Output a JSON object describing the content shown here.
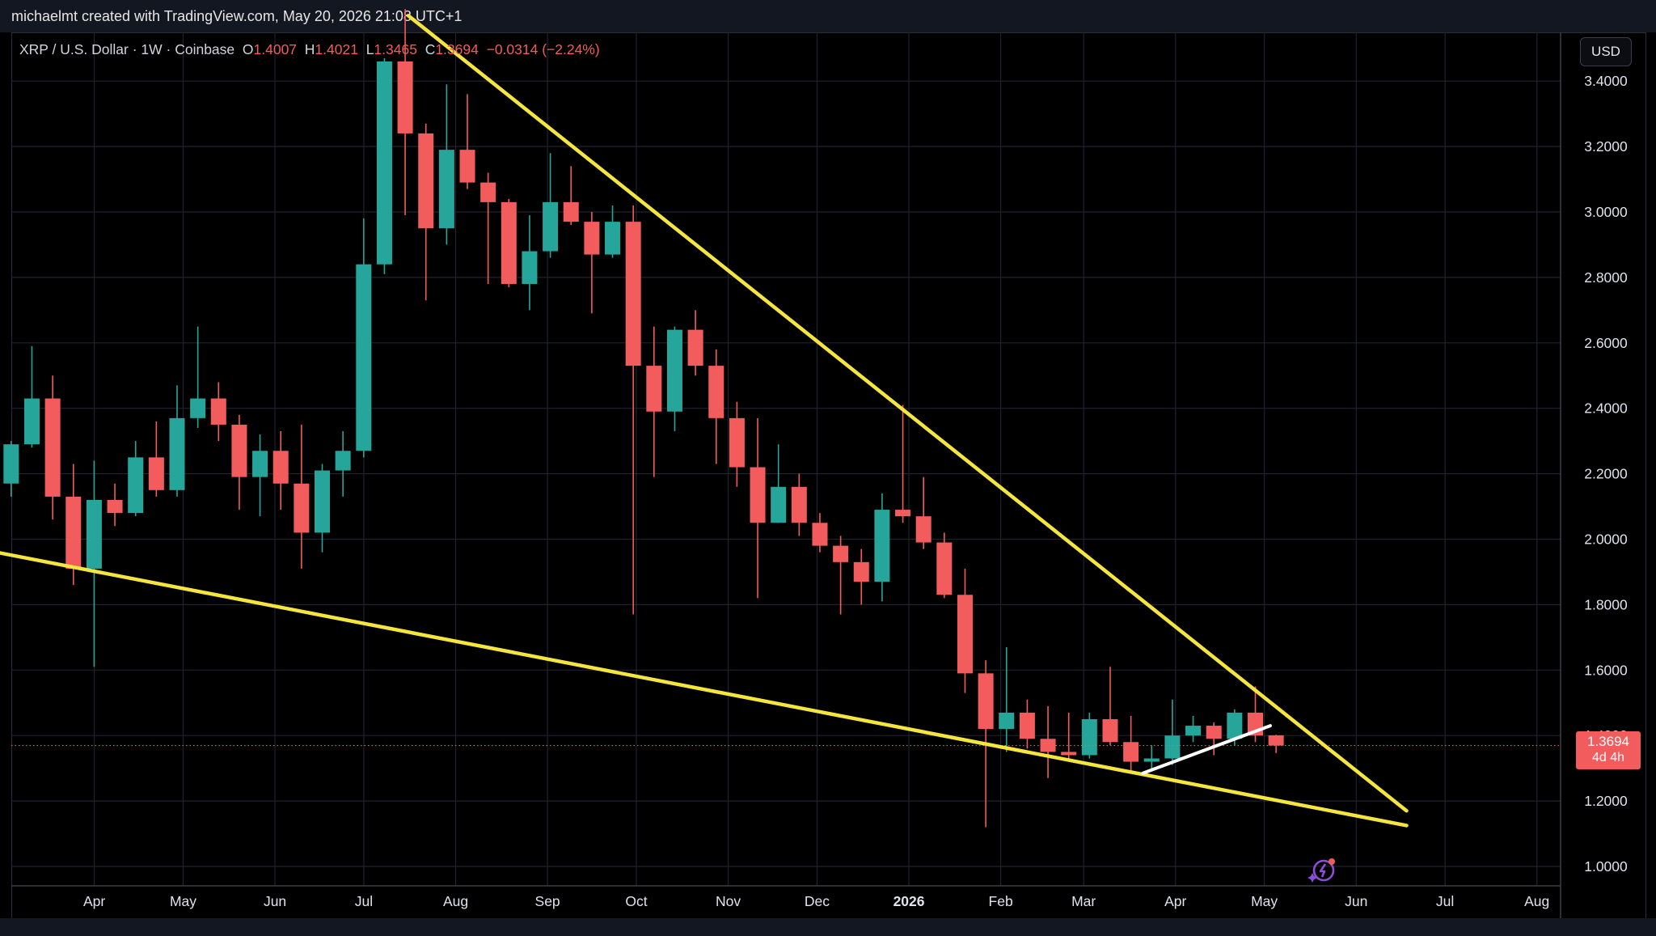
{
  "header": {
    "credit": "michaelmt created with TradingView.com, May 20, 2026 21:08 UTC+1"
  },
  "legend": {
    "symbol": "XRP / U.S. Dollar · 1W · Coinbase",
    "o_label": "O",
    "o_value": "1.4007",
    "h_label": "H",
    "h_value": "1.4021",
    "l_label": "L",
    "l_value": "1.3465",
    "c_label": "C",
    "c_value": "1.3694",
    "change": "−0.0314 (−2.24%)"
  },
  "currency_button": "USD",
  "price_tag": {
    "price": "1.3694",
    "countdown": "4d 4h"
  },
  "icons": {
    "spark": "sparkle-badge-icon"
  },
  "colors": {
    "up": "#26a69a",
    "down": "#f25c5c",
    "trendline": "#f5e63d",
    "channel": "#ffffff",
    "grid": "#1f2330"
  },
  "chart_data": {
    "type": "candlestick",
    "symbol": "XRP / U.S. Dollar",
    "interval": "1W",
    "exchange": "Coinbase",
    "y_axis": {
      "ticks": [
        1.0,
        1.2,
        1.4,
        1.6,
        1.8,
        2.0,
        2.2,
        2.4,
        2.6,
        2.8,
        3.0,
        3.2,
        3.4
      ],
      "tick_labels": [
        "1.0000",
        "1.2000",
        "1.4000",
        "1.6000",
        "1.8000",
        "2.0000",
        "2.2000",
        "2.4000",
        "2.6000",
        "2.8000",
        "3.0000",
        "3.2000",
        "3.4000"
      ],
      "range": [
        0.95,
        3.55
      ]
    },
    "x_axis": {
      "labels": [
        "Apr",
        "May",
        "Jun",
        "Jul",
        "Aug",
        "Sep",
        "Oct",
        "Nov",
        "Dec",
        "2026",
        "Feb",
        "Mar",
        "Apr",
        "May",
        "Jun",
        "Jul",
        "Aug"
      ],
      "bold": [
        false,
        false,
        false,
        false,
        false,
        false,
        false,
        false,
        false,
        true,
        false,
        false,
        false,
        false,
        false,
        false,
        false
      ],
      "range": [
        "2025-03-04",
        "2026-08-09"
      ]
    },
    "candles": [
      {
        "date": "2025-03-03",
        "o": 2.17,
        "h": 2.3,
        "l": 2.13,
        "c": 2.29
      },
      {
        "date": "2025-03-10",
        "o": 2.29,
        "h": 2.59,
        "l": 2.28,
        "c": 2.43
      },
      {
        "date": "2025-03-17",
        "o": 2.43,
        "h": 2.5,
        "l": 2.06,
        "c": 2.13
      },
      {
        "date": "2025-03-24",
        "o": 2.13,
        "h": 2.23,
        "l": 1.86,
        "c": 1.91
      },
      {
        "date": "2025-03-31",
        "o": 1.91,
        "h": 2.24,
        "l": 1.61,
        "c": 2.12
      },
      {
        "date": "2025-04-07",
        "o": 2.12,
        "h": 2.17,
        "l": 2.04,
        "c": 2.08
      },
      {
        "date": "2025-04-14",
        "o": 2.08,
        "h": 2.3,
        "l": 2.07,
        "c": 2.25
      },
      {
        "date": "2025-04-21",
        "o": 2.25,
        "h": 2.36,
        "l": 2.13,
        "c": 2.15
      },
      {
        "date": "2025-04-28",
        "o": 2.15,
        "h": 2.47,
        "l": 2.13,
        "c": 2.37
      },
      {
        "date": "2025-05-05",
        "o": 2.37,
        "h": 2.65,
        "l": 2.34,
        "c": 2.43
      },
      {
        "date": "2025-05-12",
        "o": 2.43,
        "h": 2.48,
        "l": 2.3,
        "c": 2.35
      },
      {
        "date": "2025-05-19",
        "o": 2.35,
        "h": 2.38,
        "l": 2.09,
        "c": 2.19
      },
      {
        "date": "2025-05-26",
        "o": 2.19,
        "h": 2.32,
        "l": 2.07,
        "c": 2.27
      },
      {
        "date": "2025-06-02",
        "o": 2.27,
        "h": 2.33,
        "l": 2.09,
        "c": 2.17
      },
      {
        "date": "2025-06-09",
        "o": 2.17,
        "h": 2.35,
        "l": 1.91,
        "c": 2.02
      },
      {
        "date": "2025-06-16",
        "o": 2.02,
        "h": 2.23,
        "l": 1.96,
        "c": 2.21
      },
      {
        "date": "2025-06-23",
        "o": 2.21,
        "h": 2.33,
        "l": 2.13,
        "c": 2.27
      },
      {
        "date": "2025-06-30",
        "o": 2.27,
        "h": 2.98,
        "l": 2.25,
        "c": 2.84
      },
      {
        "date": "2025-07-07",
        "o": 2.84,
        "h": 3.47,
        "l": 2.81,
        "c": 3.46
      },
      {
        "date": "2025-07-14",
        "o": 3.46,
        "h": 3.62,
        "l": 2.99,
        "c": 3.24
      },
      {
        "date": "2025-07-21",
        "o": 3.24,
        "h": 3.27,
        "l": 2.73,
        "c": 2.95
      },
      {
        "date": "2025-07-28",
        "o": 2.95,
        "h": 3.39,
        "l": 2.9,
        "c": 3.19
      },
      {
        "date": "2025-08-04",
        "o": 3.19,
        "h": 3.36,
        "l": 3.07,
        "c": 3.09
      },
      {
        "date": "2025-08-11",
        "o": 3.09,
        "h": 3.12,
        "l": 2.78,
        "c": 3.03
      },
      {
        "date": "2025-08-18",
        "o": 3.03,
        "h": 3.04,
        "l": 2.77,
        "c": 2.78
      },
      {
        "date": "2025-08-25",
        "o": 2.78,
        "h": 2.99,
        "l": 2.7,
        "c": 2.88
      },
      {
        "date": "2025-09-01",
        "o": 2.88,
        "h": 3.18,
        "l": 2.86,
        "c": 3.03
      },
      {
        "date": "2025-09-08",
        "o": 3.03,
        "h": 3.14,
        "l": 2.96,
        "c": 2.97
      },
      {
        "date": "2025-09-15",
        "o": 2.97,
        "h": 3.0,
        "l": 2.69,
        "c": 2.87
      },
      {
        "date": "2025-09-22",
        "o": 2.87,
        "h": 3.02,
        "l": 2.86,
        "c": 2.97
      },
      {
        "date": "2025-09-29",
        "o": 2.97,
        "h": 3.02,
        "l": 1.77,
        "c": 2.53
      },
      {
        "date": "2025-10-06",
        "o": 2.53,
        "h": 2.65,
        "l": 2.19,
        "c": 2.39
      },
      {
        "date": "2025-10-13",
        "o": 2.39,
        "h": 2.65,
        "l": 2.33,
        "c": 2.64
      },
      {
        "date": "2025-10-20",
        "o": 2.64,
        "h": 2.7,
        "l": 2.5,
        "c": 2.53
      },
      {
        "date": "2025-10-27",
        "o": 2.53,
        "h": 2.58,
        "l": 2.23,
        "c": 2.37
      },
      {
        "date": "2025-11-03",
        "o": 2.37,
        "h": 2.42,
        "l": 2.16,
        "c": 2.22
      },
      {
        "date": "2025-11-10",
        "o": 2.22,
        "h": 2.37,
        "l": 1.82,
        "c": 2.05
      },
      {
        "date": "2025-11-17",
        "o": 2.05,
        "h": 2.29,
        "l": 2.05,
        "c": 2.16
      },
      {
        "date": "2025-11-24",
        "o": 2.16,
        "h": 2.2,
        "l": 2.01,
        "c": 2.05
      },
      {
        "date": "2025-12-01",
        "o": 2.05,
        "h": 2.08,
        "l": 1.96,
        "c": 1.98
      },
      {
        "date": "2025-12-08",
        "o": 1.98,
        "h": 2.01,
        "l": 1.77,
        "c": 1.93
      },
      {
        "date": "2025-12-15",
        "o": 1.93,
        "h": 1.97,
        "l": 1.8,
        "c": 1.87
      },
      {
        "date": "2025-12-22",
        "o": 1.87,
        "h": 2.14,
        "l": 1.81,
        "c": 2.09
      },
      {
        "date": "2025-12-29",
        "o": 2.09,
        "h": 2.41,
        "l": 2.05,
        "c": 2.07
      },
      {
        "date": "2026-01-05",
        "o": 2.07,
        "h": 2.19,
        "l": 1.97,
        "c": 1.99
      },
      {
        "date": "2026-01-12",
        "o": 1.99,
        "h": 2.02,
        "l": 1.82,
        "c": 1.83
      },
      {
        "date": "2026-01-19",
        "o": 1.83,
        "h": 1.91,
        "l": 1.53,
        "c": 1.59
      },
      {
        "date": "2026-01-26",
        "o": 1.59,
        "h": 1.63,
        "l": 1.12,
        "c": 1.42
      },
      {
        "date": "2026-02-02",
        "o": 1.42,
        "h": 1.67,
        "l": 1.35,
        "c": 1.47
      },
      {
        "date": "2026-02-09",
        "o": 1.47,
        "h": 1.51,
        "l": 1.36,
        "c": 1.39
      },
      {
        "date": "2026-02-16",
        "o": 1.39,
        "h": 1.49,
        "l": 1.27,
        "c": 1.35
      },
      {
        "date": "2026-02-23",
        "o": 1.35,
        "h": 1.47,
        "l": 1.32,
        "c": 1.34
      },
      {
        "date": "2026-03-02",
        "o": 1.34,
        "h": 1.47,
        "l": 1.33,
        "c": 1.45
      },
      {
        "date": "2026-03-09",
        "o": 1.45,
        "h": 1.61,
        "l": 1.37,
        "c": 1.38
      },
      {
        "date": "2026-03-16",
        "o": 1.38,
        "h": 1.46,
        "l": 1.29,
        "c": 1.32
      },
      {
        "date": "2026-03-23",
        "o": 1.32,
        "h": 1.37,
        "l": 1.29,
        "c": 1.33
      },
      {
        "date": "2026-03-30",
        "o": 1.33,
        "h": 1.51,
        "l": 1.31,
        "c": 1.4
      },
      {
        "date": "2026-04-06",
        "o": 1.4,
        "h": 1.46,
        "l": 1.38,
        "c": 1.43
      },
      {
        "date": "2026-04-13",
        "o": 1.43,
        "h": 1.44,
        "l": 1.34,
        "c": 1.39
      },
      {
        "date": "2026-04-20",
        "o": 1.39,
        "h": 1.48,
        "l": 1.37,
        "c": 1.47
      },
      {
        "date": "2026-04-27",
        "o": 1.47,
        "h": 1.55,
        "l": 1.38,
        "c": 1.4
      },
      {
        "date": "2026-05-04",
        "o": 1.4007,
        "h": 1.4021,
        "l": 1.3465,
        "c": 1.3694
      }
    ],
    "last_price": 1.3694,
    "annotations": [
      {
        "type": "trendline",
        "color": "yellow",
        "from": {
          "date": "2025-07-16",
          "price": 3.6
        },
        "to": {
          "date": "2026-06-18",
          "price": 1.17
        }
      },
      {
        "type": "trendline",
        "color": "yellow",
        "from": {
          "date": "2025-02-27",
          "price": 1.96
        },
        "to": {
          "date": "2026-06-18",
          "price": 1.125
        }
      },
      {
        "type": "trendline",
        "color": "white",
        "from": {
          "date": "2026-03-21",
          "price": 1.285
        },
        "to": {
          "date": "2026-05-03",
          "price": 1.43
        }
      }
    ]
  }
}
